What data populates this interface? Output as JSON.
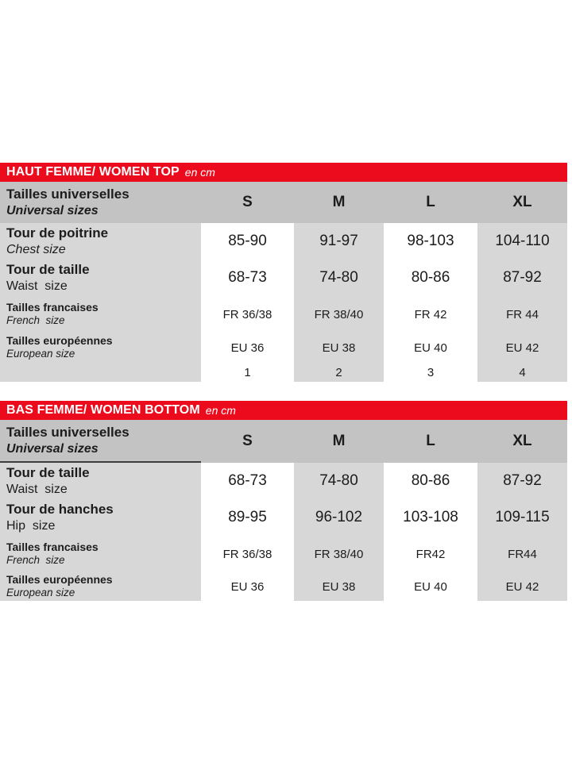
{
  "colors": {
    "accent_red": "#ec0b1d",
    "header_row_gray": "#c3c3c3",
    "cell_gray": "#d7d7d7",
    "text": "#1c1c1c"
  },
  "tables": [
    {
      "title": "HAUT FEMME/ WOMEN TOP",
      "unit": "en cm",
      "size_header": {
        "fr": "Tailles universelles",
        "en": "Universal sizes"
      },
      "columns": [
        "S",
        "M",
        "L",
        "XL"
      ],
      "rows": [
        {
          "fr": "Tour de poitrine",
          "en": "Chest size",
          "values": [
            "85-90",
            "91-97",
            "98-103",
            "104-110"
          ]
        },
        {
          "fr": "Tour de taille",
          "en": "Waist  size",
          "values": [
            "68-73",
            "74-80",
            "80-86",
            "87-92"
          ]
        },
        {
          "fr": "Tailles francaises",
          "en": "French  size",
          "values": [
            "FR 36/38",
            "FR 38/40",
            "FR 42",
            "FR 44"
          ]
        },
        {
          "fr": "Tailles européennes",
          "en": "European size",
          "values": [
            "EU 36",
            "EU 38",
            "EU 40",
            "EU 42"
          ]
        },
        {
          "fr": "",
          "en": "",
          "values": [
            "1",
            "2",
            "3",
            "4"
          ]
        }
      ]
    },
    {
      "title": "BAS FEMME/ WOMEN BOTTOM",
      "unit": "en cm",
      "size_header": {
        "fr": "Tailles universelles",
        "en": "Universal sizes"
      },
      "columns": [
        "S",
        "M",
        "L",
        "XL"
      ],
      "rows": [
        {
          "fr": "Tour de taille",
          "en": "Waist  size",
          "values": [
            "68-73",
            "74-80",
            "80-86",
            "87-92"
          ]
        },
        {
          "fr": "Tour de hanches",
          "en": "Hip  size",
          "values": [
            "89-95",
            "96-102",
            "103-108",
            "109-115"
          ]
        },
        {
          "fr": "Tailles francaises",
          "en": "French  size",
          "values": [
            "FR 36/38",
            "FR 38/40",
            "FR42",
            "FR44"
          ]
        },
        {
          "fr": "Tailles européennes",
          "en": "European size",
          "values": [
            "EU 36",
            "EU 38",
            "EU 40",
            "EU 42"
          ]
        }
      ]
    }
  ]
}
